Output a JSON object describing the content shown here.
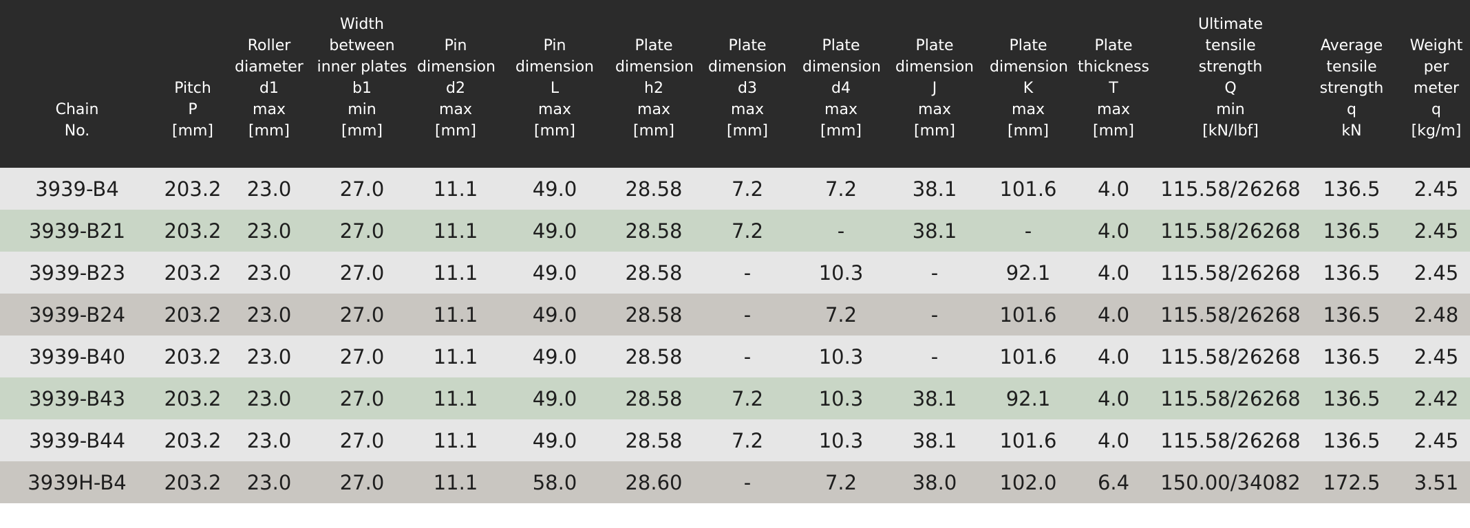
{
  "colors": {
    "header_bg": "#2b2b2b",
    "header_text": "#ffffff",
    "row_light": "#e6e6e6",
    "row_green": "#c9d6c6",
    "row_gray": "#c9c6c1"
  },
  "columns": [
    {
      "key": "chain_no",
      "lines": [
        "Chain",
        "No."
      ]
    },
    {
      "key": "pitch",
      "lines": [
        "Pitch",
        "P",
        "[mm]"
      ]
    },
    {
      "key": "roller_d1",
      "lines": [
        "Roller",
        "diameter",
        "d1",
        "max",
        "[mm]"
      ]
    },
    {
      "key": "width_b1",
      "lines": [
        "Width",
        "between",
        "inner plates",
        "b1",
        "min",
        "[mm]"
      ]
    },
    {
      "key": "pin_d2",
      "lines": [
        "Pin",
        "dimension",
        "d2",
        "max",
        "[mm]"
      ]
    },
    {
      "key": "pin_L",
      "lines": [
        "Pin",
        "dimension",
        "L",
        "max",
        "[mm]"
      ]
    },
    {
      "key": "plate_h2",
      "lines": [
        "Plate",
        "dimension",
        "h2",
        "max",
        "[mm]"
      ]
    },
    {
      "key": "plate_d3",
      "lines": [
        "Plate",
        "dimension",
        "d3",
        "max",
        "[mm]"
      ]
    },
    {
      "key": "plate_d4",
      "lines": [
        "Plate",
        "dimension",
        "d4",
        "max",
        "[mm]"
      ]
    },
    {
      "key": "plate_J",
      "lines": [
        "Plate",
        "dimension",
        "J",
        "max",
        "[mm]"
      ]
    },
    {
      "key": "plate_K",
      "lines": [
        "Plate",
        "dimension",
        "K",
        "max",
        "[mm]"
      ]
    },
    {
      "key": "plate_T",
      "lines": [
        "Plate",
        "thickness",
        "T",
        "max",
        "[mm]"
      ]
    },
    {
      "key": "ult_Q",
      "lines": [
        "Ultimate",
        "tensile",
        "strength",
        "Q",
        "min",
        "[kN/lbf]"
      ]
    },
    {
      "key": "avg_q",
      "lines": [
        "Average",
        "tensile",
        "strength",
        "q",
        "kN"
      ]
    },
    {
      "key": "weight_q",
      "lines": [
        "Weight",
        "per",
        "meter",
        "q",
        "[kg/m]"
      ]
    }
  ],
  "rows": [
    {
      "style": "light",
      "cells": [
        "3939-B4",
        "203.2",
        "23.0",
        "27.0",
        "11.1",
        "49.0",
        "28.58",
        "7.2",
        "7.2",
        "38.1",
        "101.6",
        "4.0",
        "115.58/26268",
        "136.5",
        "2.45"
      ]
    },
    {
      "style": "green",
      "cells": [
        "3939-B21",
        "203.2",
        "23.0",
        "27.0",
        "11.1",
        "49.0",
        "28.58",
        "7.2",
        "-",
        "38.1",
        "-",
        "4.0",
        "115.58/26268",
        "136.5",
        "2.45"
      ]
    },
    {
      "style": "light",
      "cells": [
        "3939-B23",
        "203.2",
        "23.0",
        "27.0",
        "11.1",
        "49.0",
        "28.58",
        "-",
        "10.3",
        "-",
        "92.1",
        "4.0",
        "115.58/26268",
        "136.5",
        "2.45"
      ]
    },
    {
      "style": "gray",
      "cells": [
        "3939-B24",
        "203.2",
        "23.0",
        "27.0",
        "11.1",
        "49.0",
        "28.58",
        "-",
        "7.2",
        "-",
        "101.6",
        "4.0",
        "115.58/26268",
        "136.5",
        "2.48"
      ]
    },
    {
      "style": "light",
      "cells": [
        "3939-B40",
        "203.2",
        "23.0",
        "27.0",
        "11.1",
        "49.0",
        "28.58",
        "-",
        "10.3",
        "-",
        "101.6",
        "4.0",
        "115.58/26268",
        "136.5",
        "2.45"
      ]
    },
    {
      "style": "green",
      "cells": [
        "3939-B43",
        "203.2",
        "23.0",
        "27.0",
        "11.1",
        "49.0",
        "28.58",
        "7.2",
        "10.3",
        "38.1",
        "92.1",
        "4.0",
        "115.58/26268",
        "136.5",
        "2.42"
      ]
    },
    {
      "style": "light",
      "cells": [
        "3939-B44",
        "203.2",
        "23.0",
        "27.0",
        "11.1",
        "49.0",
        "28.58",
        "7.2",
        "10.3",
        "38.1",
        "101.6",
        "4.0",
        "115.58/26268",
        "136.5",
        "2.45"
      ]
    },
    {
      "style": "gray",
      "cells": [
        "3939H-B4",
        "203.2",
        "23.0",
        "27.0",
        "11.1",
        "58.0",
        "28.60",
        "-",
        "7.2",
        "38.0",
        "102.0",
        "6.4",
        "150.00/34082",
        "172.5",
        "3.51"
      ]
    }
  ]
}
